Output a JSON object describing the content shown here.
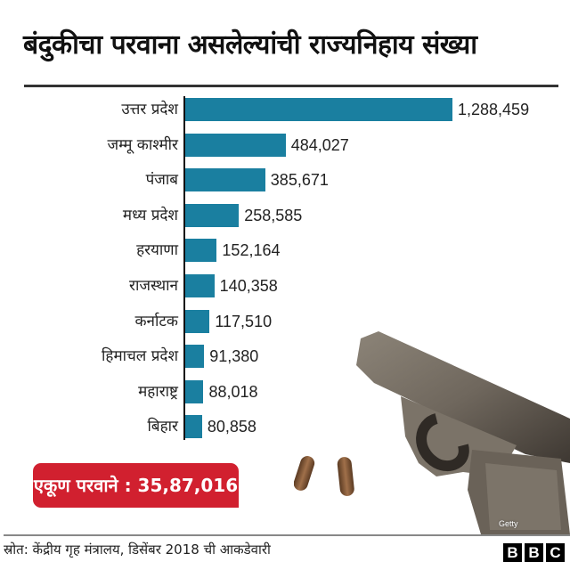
{
  "title": "बंदुकीचा परवाना असलेल्यांची राज्यनिहाय संख्या",
  "total_badge": "एकूण परवाने : 35,87,016",
  "source": "स्रोत: केंद्रीय गृह मंत्रालय, डिसेंबर 2018 ची आकडेवारी",
  "photo_credit": "Getty",
  "logo": [
    "B",
    "B",
    "C"
  ],
  "colors": {
    "bar": "#1a7fa0",
    "badge": "#d1202f",
    "title": "#111111"
  },
  "rows": [
    {
      "label": "उत्तर प्रदेश",
      "value_text": "1,288,459"
    },
    {
      "label": "जम्मू काश्मीर",
      "value_text": "484,027"
    },
    {
      "label": "पंजाब",
      "value_text": "385,671"
    },
    {
      "label": "मध्य प्रदेश",
      "value_text": "258,585"
    },
    {
      "label": "हरयाणा",
      "value_text": "152,164"
    },
    {
      "label": "राजस्थान",
      "value_text": "140,358"
    },
    {
      "label": "कर्नाटक",
      "value_text": "117,510"
    },
    {
      "label": "हिमाचल प्रदेश",
      "value_text": "91,380"
    },
    {
      "label": "महाराष्ट्र",
      "value_text": "88,018"
    },
    {
      "label": "बिहार",
      "value_text": "80,858"
    }
  ],
  "chart_data": {
    "type": "bar",
    "orientation": "horizontal",
    "title": "बंदुकीचा परवाना असलेल्यांची राज्यनिहाय संख्या",
    "categories": [
      "उत्तर प्रदेश",
      "जम्मू काश्मीर",
      "पंजाब",
      "मध्य प्रदेश",
      "हरयाणा",
      "राजस्थान",
      "कर्नाटक",
      "हिमाचल प्रदेश",
      "महाराष्ट्र",
      "बिहार"
    ],
    "values": [
      1288459,
      484027,
      385671,
      258585,
      152164,
      140358,
      117510,
      91380,
      88018,
      80858
    ],
    "xlabel": "",
    "ylabel": "",
    "grid": false,
    "data_labels": true,
    "annotation": "एकूण परवाने : 35,87,016",
    "source": "स्रोत: केंद्रीय गृह मंत्रालय, डिसेंबर 2018 ची आकडेवारी"
  }
}
